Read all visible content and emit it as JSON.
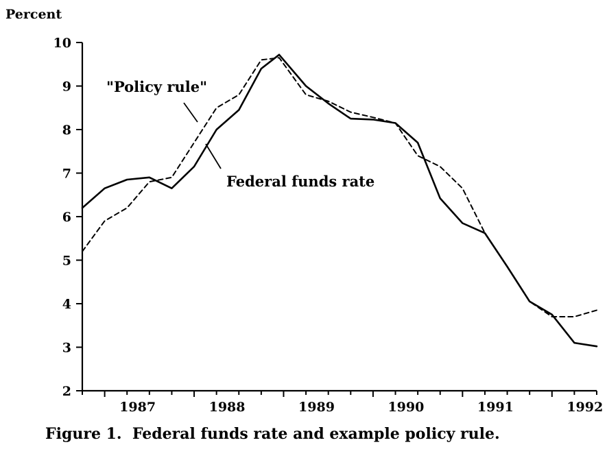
{
  "chart_data": {
    "type": "line",
    "title": "",
    "ylabel": "Percent",
    "xlabel": "",
    "caption": "Figure 1.  Federal funds rate and example policy rule.",
    "ylim": [
      2,
      10
    ],
    "xlim": [
      1986.75,
      1992.5
    ],
    "y_ticks": [
      2,
      3,
      4,
      5,
      6,
      7,
      8,
      9,
      10
    ],
    "x_tick_labels": [
      {
        "label": "1987",
        "x": 1987.0
      },
      {
        "label": "1988",
        "x": 1988.0
      },
      {
        "label": "1989",
        "x": 1989.0
      },
      {
        "label": "1990",
        "x": 1990.0
      },
      {
        "label": "1991",
        "x": 1991.0
      },
      {
        "label": "1992",
        "x": 1992.0
      }
    ],
    "minor_ticks_per_year": 4,
    "grid": false,
    "legend": "none (direct labels on lines)",
    "series": [
      {
        "name": "Federal funds rate",
        "style": "solid",
        "x": [
          1986.75,
          1987.0,
          1987.25,
          1987.5,
          1987.75,
          1988.0,
          1988.25,
          1988.5,
          1988.75,
          1988.95,
          1989.25,
          1989.5,
          1989.75,
          1990.0,
          1990.25,
          1990.5,
          1990.75,
          1991.0,
          1991.25,
          1991.5,
          1991.75,
          1992.0,
          1992.25,
          1992.5
        ],
        "values": [
          6.2,
          6.65,
          6.85,
          6.9,
          6.65,
          7.15,
          8.0,
          8.45,
          9.4,
          9.72,
          9.0,
          8.6,
          8.25,
          8.23,
          8.15,
          7.7,
          6.42,
          5.85,
          5.62,
          4.85,
          4.05,
          3.75,
          3.1,
          3.02
        ]
      },
      {
        "name": "\"Policy rule\"",
        "style": "dashed",
        "x": [
          1986.75,
          1987.0,
          1987.25,
          1987.5,
          1987.75,
          1988.0,
          1988.25,
          1988.5,
          1988.75,
          1988.95,
          1989.25,
          1989.5,
          1989.75,
          1990.0,
          1990.25,
          1990.5,
          1990.75,
          1991.0,
          1991.25,
          1991.5,
          1991.75,
          1992.0,
          1992.25,
          1992.5
        ],
        "values": [
          5.2,
          5.9,
          6.2,
          6.8,
          6.9,
          7.7,
          8.5,
          8.8,
          9.6,
          9.65,
          8.8,
          8.65,
          8.4,
          8.28,
          8.15,
          7.4,
          7.15,
          6.65,
          5.62,
          4.85,
          4.05,
          3.7,
          3.7,
          3.85
        ]
      }
    ],
    "annotations": [
      {
        "text": "\"Policy rule\"",
        "series": "\"Policy rule\""
      },
      {
        "text": "Federal funds rate",
        "series": "Federal funds rate"
      }
    ]
  }
}
